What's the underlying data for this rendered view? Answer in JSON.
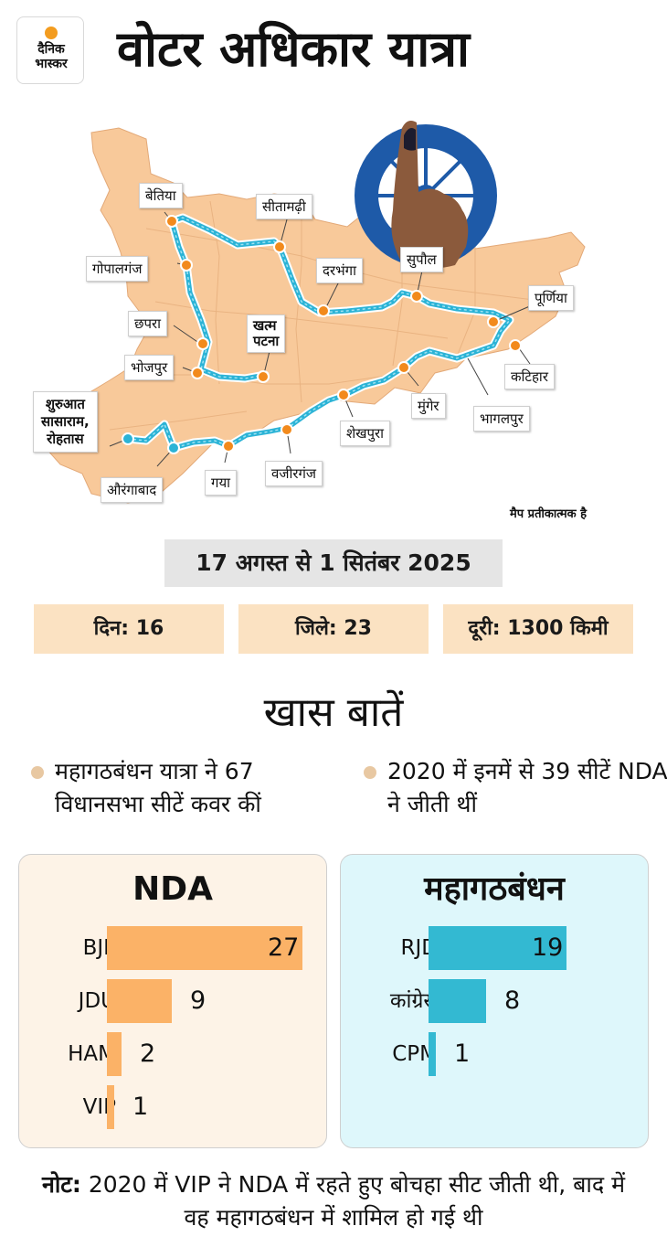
{
  "logo": {
    "line1": "दैनिक",
    "line2": "भास्कर"
  },
  "title": "वोटर अधिकार यात्रा",
  "map": {
    "labels": [
      {
        "id": "bettiah",
        "text": "बेतिया"
      },
      {
        "id": "sitamarhi",
        "text": "सीतामढ़ी"
      },
      {
        "id": "gopalganj",
        "text": "गोपालगंज"
      },
      {
        "id": "darbhanga",
        "text": "दरभंगा"
      },
      {
        "id": "supaul",
        "text": "सुपौल"
      },
      {
        "id": "purnia",
        "text": "पूर्णिया"
      },
      {
        "id": "chhapra",
        "text": "छपरा"
      },
      {
        "id": "patna_line1",
        "text": "खत्म"
      },
      {
        "id": "patna_line2",
        "text": "पटना"
      },
      {
        "id": "bhojpur",
        "text": "भोजपुर"
      },
      {
        "id": "katihar",
        "text": "कटिहार"
      },
      {
        "id": "munger",
        "text": "मुंगेर"
      },
      {
        "id": "bhagalpur",
        "text": "भागलपुर"
      },
      {
        "id": "start_line1",
        "text": "शुरुआत"
      },
      {
        "id": "start_line2",
        "text": "सासाराम,"
      },
      {
        "id": "start_line3",
        "text": "रोहतास"
      },
      {
        "id": "sheikhpura",
        "text": "शेखपुरा"
      },
      {
        "id": "aurangabad",
        "text": "औरंगाबाद"
      },
      {
        "id": "gaya",
        "text": "गया"
      },
      {
        "id": "wazirganj",
        "text": "वजीरगंज"
      }
    ],
    "disclaimer": "मैप प्रतीकात्मक है",
    "colors": {
      "land": "#f8c99a",
      "route": "#2bb3d6",
      "stop": "#f28a1c",
      "start": "#2bb3d6"
    }
  },
  "dates": "17 अगस्त से 1 सितंबर 2025",
  "stats": [
    {
      "label": "दिन: 16"
    },
    {
      "label": "जिले: 23"
    },
    {
      "label": "दूरी: 1300 किमी"
    }
  ],
  "highlights": {
    "heading": "खास बातें",
    "points": [
      {
        "text": "महागठबंधन यात्रा ने 67 विधानसभा सीटें कवर कीं"
      },
      {
        "text": "2020 में इनमें से 39 सीटें NDA ने जीती थीं"
      }
    ]
  },
  "chart_data": [
    {
      "type": "bar",
      "title": "NDA",
      "color": "#fbb267",
      "categories": [
        "BJP",
        "JDU",
        "HAM",
        "VIP"
      ],
      "values": [
        27,
        9,
        2,
        1
      ]
    },
    {
      "type": "bar",
      "title": "महागठबंधन",
      "color": "#33b9d2",
      "categories": [
        "RJD",
        "कांग्रेस",
        "CPM"
      ],
      "values": [
        19,
        8,
        1
      ]
    }
  ],
  "footnote": {
    "label": "नोट:",
    "text": " 2020 में VIP ने NDA में रहते हुए बोचहा सीट जीती थी, बाद में वह महागठबंधन में शामिल हो गई थी"
  }
}
